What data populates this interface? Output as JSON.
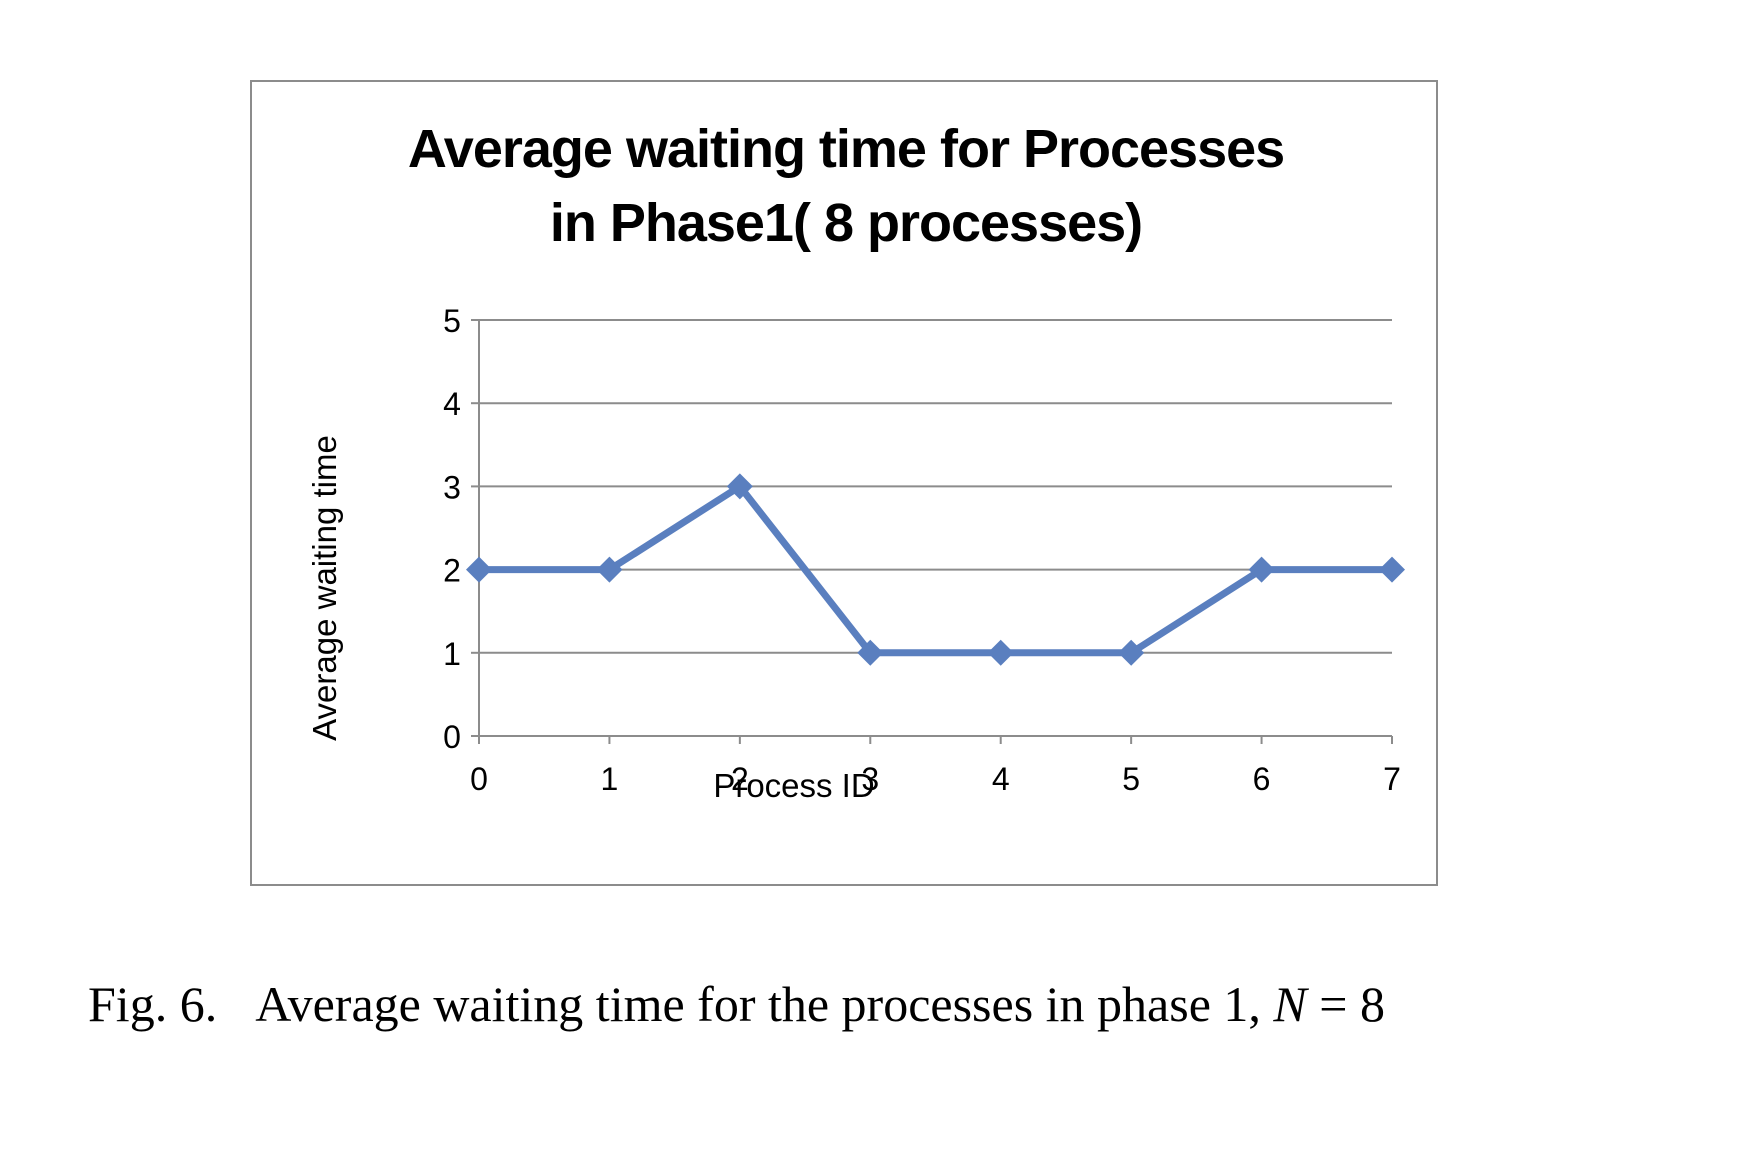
{
  "chart_data": {
    "type": "line",
    "title_lines": [
      "Average waiting time for Processes",
      "in Phase1( 8 processes)"
    ],
    "xlabel": "Process ID",
    "ylabel": "Average waiting time",
    "x": [
      0,
      1,
      2,
      3,
      4,
      5,
      6,
      7
    ],
    "x_tick_labels": [
      "0",
      "1",
      "2",
      "3",
      "4",
      "5",
      "6",
      "7"
    ],
    "y_tick_labels": [
      "0",
      "1",
      "2",
      "3",
      "4",
      "5"
    ],
    "ylim": [
      0,
      5
    ],
    "series": [
      {
        "values": [
          2,
          2,
          3,
          1,
          1,
          1,
          2,
          2
        ],
        "color": "#5a7fbf",
        "marker": "diamond"
      }
    ],
    "grid": true,
    "legend": "none"
  },
  "caption": {
    "label": "Fig. 6.",
    "text": "Average waiting time for the processes in phase 1,",
    "var": "N",
    "relation": "= 8"
  }
}
